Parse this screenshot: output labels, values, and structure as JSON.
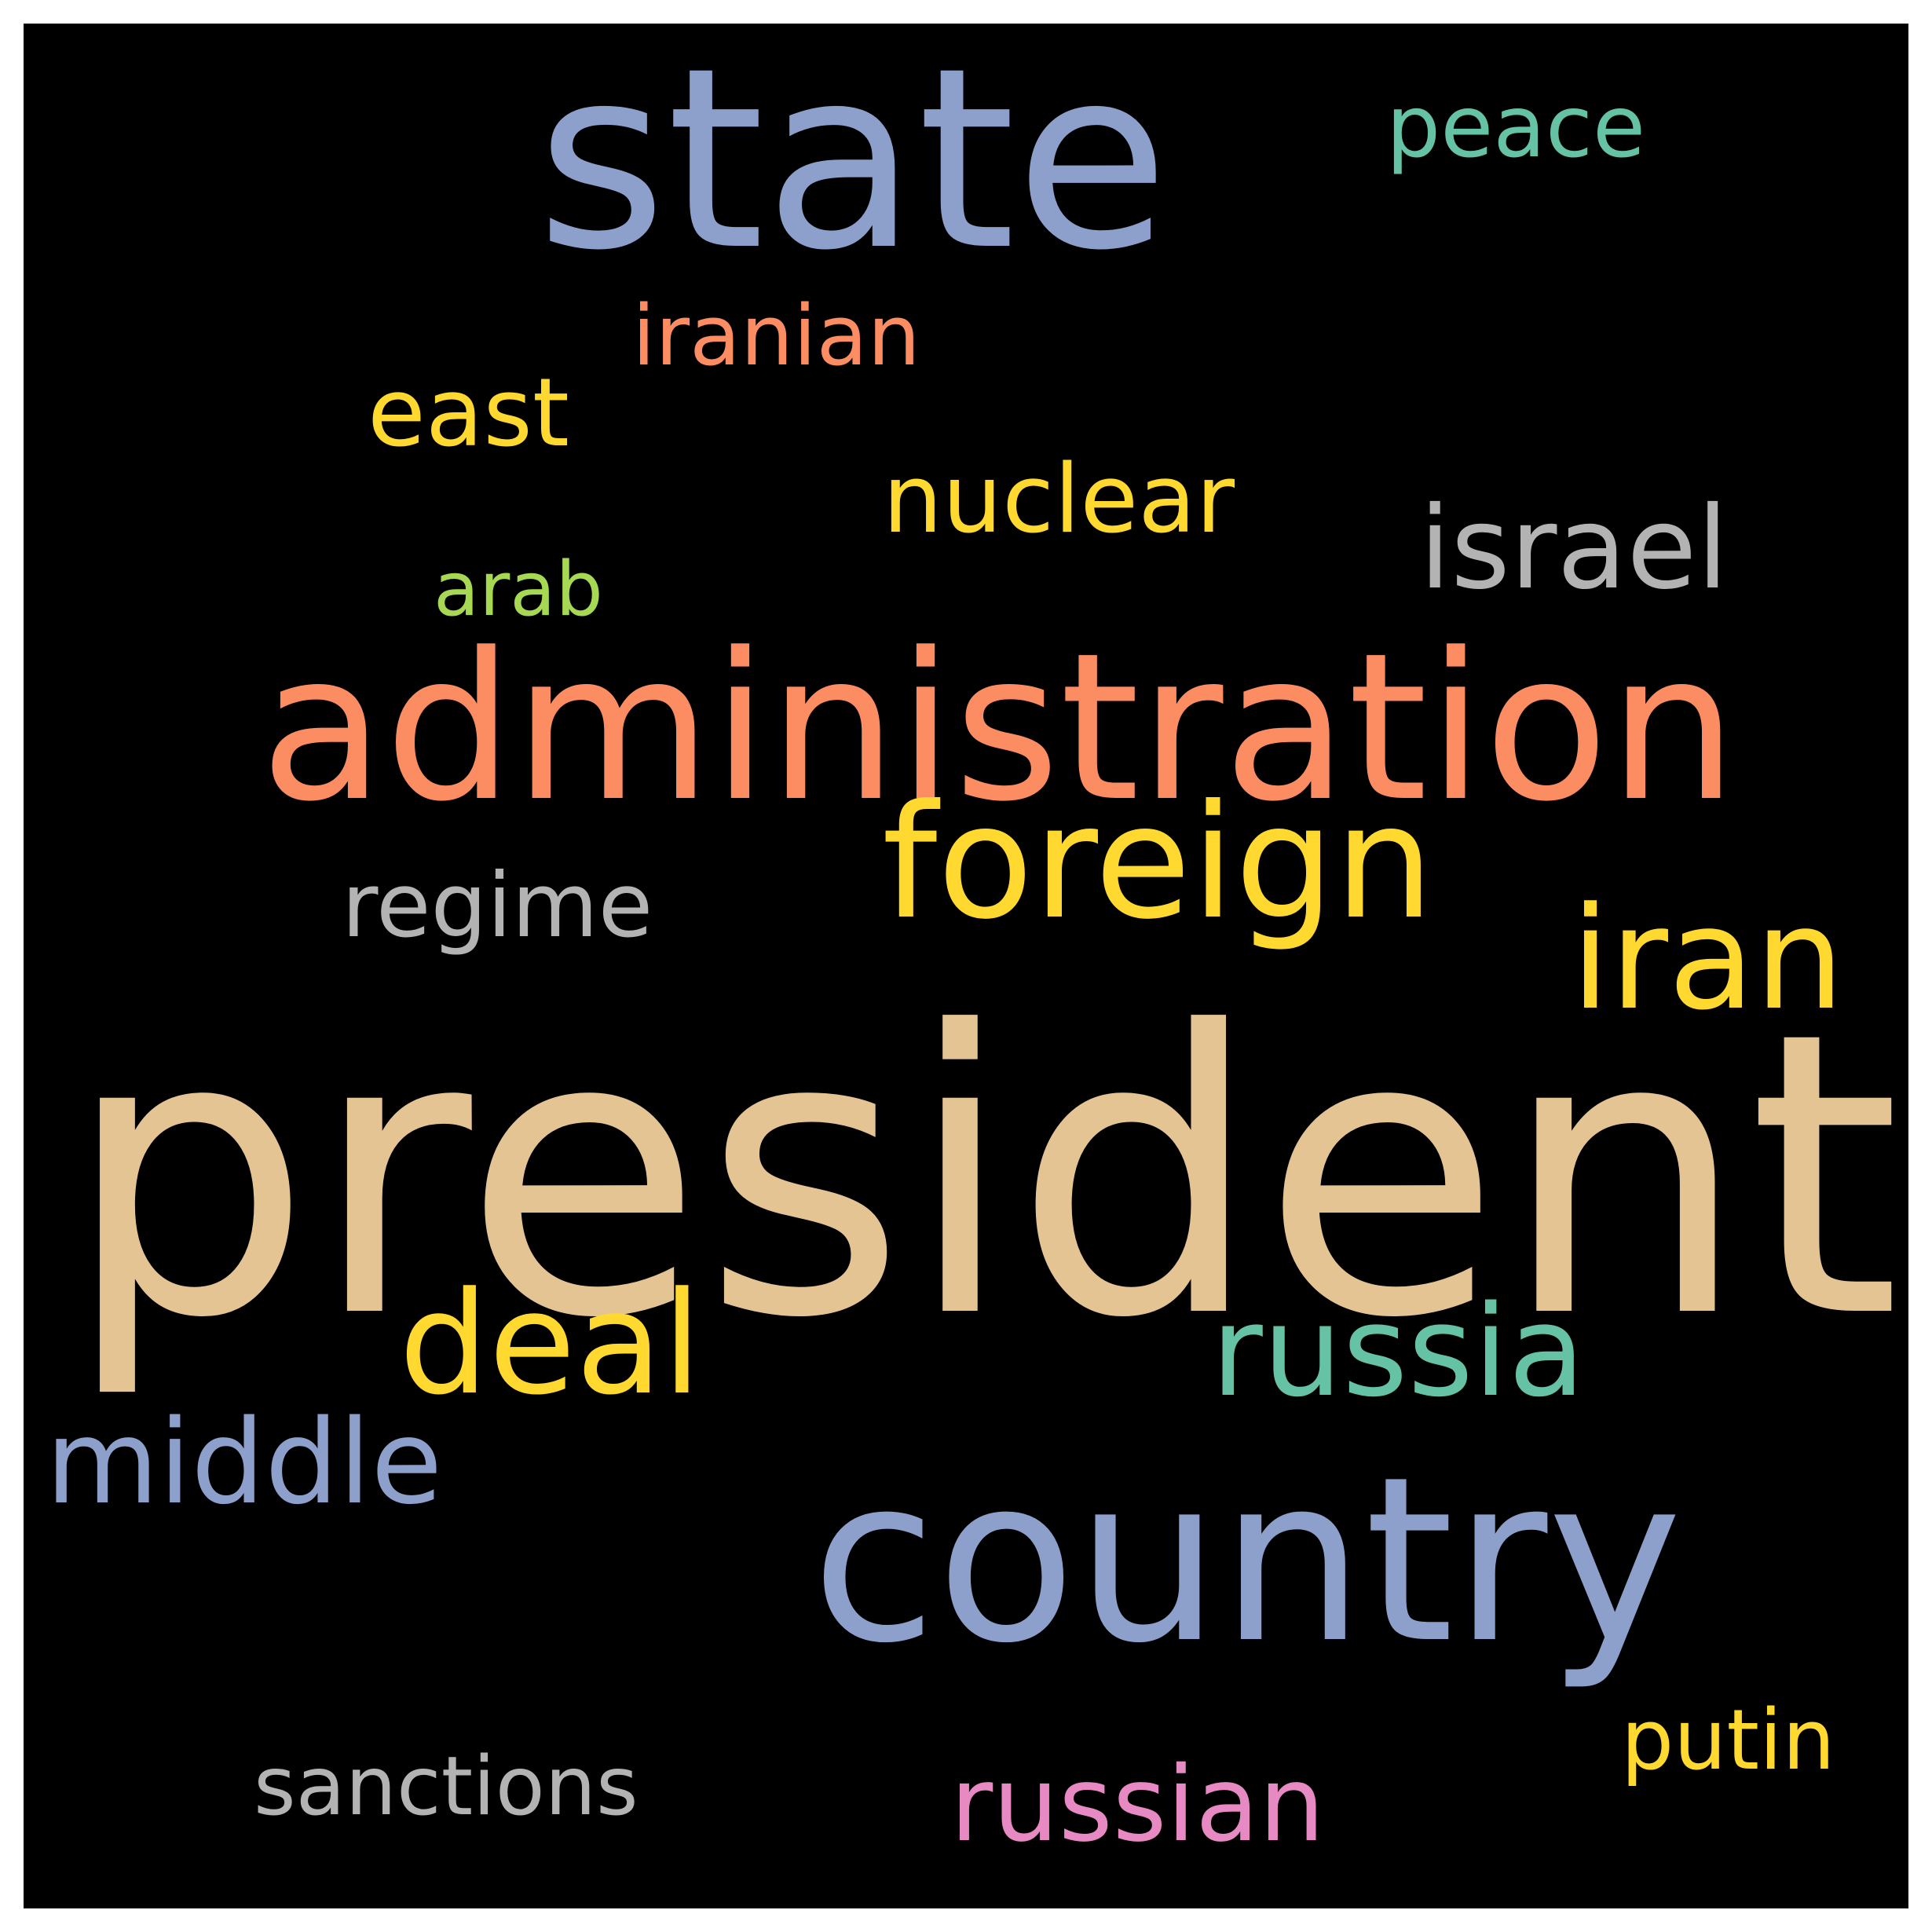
{
  "words": {
    "president": {
      "text": "president",
      "color": "#e5c494"
    },
    "state": {
      "text": "state",
      "color": "#8da0cb"
    },
    "administration": {
      "text": "administration",
      "color": "#fc8d62"
    },
    "country": {
      "text": "country",
      "color": "#8da0cb"
    },
    "foreign": {
      "text": "foreign",
      "color": "#ffd92f"
    },
    "iran": {
      "text": "iran",
      "color": "#ffd92f"
    },
    "russia": {
      "text": "russia",
      "color": "#66c2a5"
    },
    "deal": {
      "text": "deal",
      "color": "#ffd92f"
    },
    "middle": {
      "text": "middle",
      "color": "#8da0cb"
    },
    "israel": {
      "text": "israel",
      "color": "#b3b3b3"
    },
    "nuclear": {
      "text": "nuclear",
      "color": "#ffd92f"
    },
    "east": {
      "text": "east",
      "color": "#ffd92f"
    },
    "iranian": {
      "text": "iranian",
      "color": "#fc8d62"
    },
    "peace": {
      "text": "peace",
      "color": "#66c2a5"
    },
    "regime": {
      "text": "regime",
      "color": "#b3b3b3"
    },
    "arab": {
      "text": "arab",
      "color": "#a6d854"
    },
    "russian": {
      "text": "russian",
      "color": "#e78ac3"
    },
    "sanctions": {
      "text": "sanctions",
      "color": "#b3b3b3"
    },
    "putin": {
      "text": "putin",
      "color": "#ffd92f"
    }
  }
}
